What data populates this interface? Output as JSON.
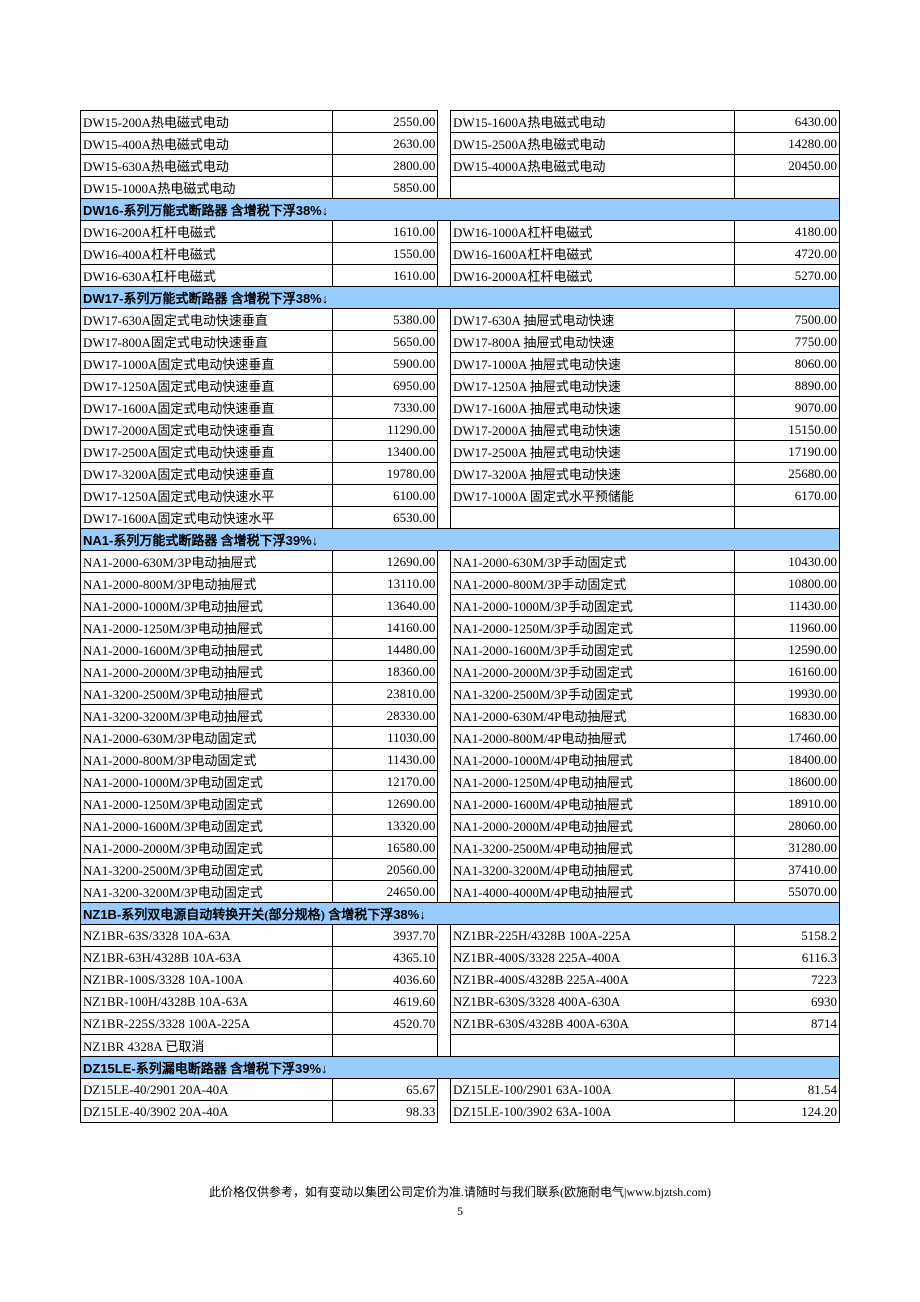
{
  "colors": {
    "header_bg": "#99ccff",
    "border": "#000000",
    "bg": "#ffffff"
  },
  "sections": [
    {
      "type": "data",
      "rows": [
        {
          "l_name": "DW15-200A热电磁式电动",
          "l_price": "2550.00",
          "r_name": "DW15-1600A热电磁式电动",
          "r_price": "6430.00"
        },
        {
          "l_name": "DW15-400A热电磁式电动",
          "l_price": "2630.00",
          "r_name": "DW15-2500A热电磁式电动",
          "r_price": "14280.00"
        },
        {
          "l_name": "DW15-630A热电磁式电动",
          "l_price": "2800.00",
          "r_name": "DW15-4000A热电磁式电动",
          "r_price": "20450.00"
        },
        {
          "l_name": "DW15-1000A热电磁式电动",
          "l_price": "5850.00",
          "r_name": "",
          "r_price": ""
        }
      ]
    },
    {
      "type": "header",
      "prefix": "DW16-",
      "title": "系列万能式断路器  含增税下浮",
      "pct": "38%↓"
    },
    {
      "type": "data",
      "rows": [
        {
          "l_name": "DW16-200A杠杆电磁式",
          "l_price": "1610.00",
          "r_name": "DW16-1000A杠杆电磁式",
          "r_price": "4180.00"
        },
        {
          "l_name": "DW16-400A杠杆电磁式",
          "l_price": "1550.00",
          "r_name": "DW16-1600A杠杆电磁式",
          "r_price": "4720.00"
        },
        {
          "l_name": "DW16-630A杠杆电磁式",
          "l_price": "1610.00",
          "r_name": "DW16-2000A杠杆电磁式",
          "r_price": "5270.00"
        }
      ]
    },
    {
      "type": "header",
      "prefix": "DW17-",
      "title": "系列万能式断路器  含增税下浮",
      "pct": "38%↓"
    },
    {
      "type": "data",
      "rows": [
        {
          "l_name": "DW17-630A固定式电动快速垂直",
          "l_price": "5380.00",
          "r_name": "DW17-630A 抽屉式电动快速",
          "r_price": "7500.00"
        },
        {
          "l_name": "DW17-800A固定式电动快速垂直",
          "l_price": "5650.00",
          "r_name": "DW17-800A 抽屉式电动快速",
          "r_price": "7750.00"
        },
        {
          "l_name": "DW17-1000A固定式电动快速垂直",
          "l_price": "5900.00",
          "r_name": "DW17-1000A 抽屉式电动快速",
          "r_price": "8060.00"
        },
        {
          "l_name": "DW17-1250A固定式电动快速垂直",
          "l_price": "6950.00",
          "r_name": "DW17-1250A 抽屉式电动快速",
          "r_price": "8890.00"
        },
        {
          "l_name": "DW17-1600A固定式电动快速垂直",
          "l_price": "7330.00",
          "r_name": "DW17-1600A 抽屉式电动快速",
          "r_price": "9070.00"
        },
        {
          "l_name": "DW17-2000A固定式电动快速垂直",
          "l_price": "11290.00",
          "r_name": "DW17-2000A 抽屉式电动快速",
          "r_price": "15150.00"
        },
        {
          "l_name": "DW17-2500A固定式电动快速垂直",
          "l_price": "13400.00",
          "r_name": "DW17-2500A 抽屉式电动快速",
          "r_price": "17190.00"
        },
        {
          "l_name": "DW17-3200A固定式电动快速垂直",
          "l_price": "19780.00",
          "r_name": "DW17-3200A 抽屉式电动快速",
          "r_price": "25680.00"
        },
        {
          "l_name": "DW17-1250A固定式电动快速水平",
          "l_price": "6100.00",
          "r_name": "DW17-1000A 固定式水平预储能",
          "r_price": "6170.00"
        },
        {
          "l_name": "DW17-1600A固定式电动快速水平",
          "l_price": "6530.00",
          "r_name": "",
          "r_price": ""
        }
      ]
    },
    {
      "type": "header",
      "prefix": "NA1-",
      "title": "系列万能式断路器  含增税下浮",
      "pct": "39%↓"
    },
    {
      "type": "data",
      "rows": [
        {
          "l_name": "NA1-2000-630M/3P电动抽屉式",
          "l_price": "12690.00",
          "r_name": "NA1-2000-630M/3P手动固定式",
          "r_price": "10430.00"
        },
        {
          "l_name": "NA1-2000-800M/3P电动抽屉式",
          "l_price": "13110.00",
          "r_name": "NA1-2000-800M/3P手动固定式",
          "r_price": "10800.00"
        },
        {
          "l_name": "NA1-2000-1000M/3P电动抽屉式",
          "l_price": "13640.00",
          "r_name": "NA1-2000-1000M/3P手动固定式",
          "r_price": "11430.00"
        },
        {
          "l_name": "NA1-2000-1250M/3P电动抽屉式",
          "l_price": "14160.00",
          "r_name": "NA1-2000-1250M/3P手动固定式",
          "r_price": "11960.00"
        },
        {
          "l_name": "NA1-2000-1600M/3P电动抽屉式",
          "l_price": "14480.00",
          "r_name": "NA1-2000-1600M/3P手动固定式",
          "r_price": "12590.00"
        },
        {
          "l_name": "NA1-2000-2000M/3P电动抽屉式",
          "l_price": "18360.00",
          "r_name": "NA1-2000-2000M/3P手动固定式",
          "r_price": "16160.00"
        },
        {
          "l_name": "NA1-3200-2500M/3P电动抽屉式",
          "l_price": "23810.00",
          "r_name": "NA1-3200-2500M/3P手动固定式",
          "r_price": "19930.00"
        },
        {
          "l_name": "NA1-3200-3200M/3P电动抽屉式",
          "l_price": "28330.00",
          "r_name": "NA1-2000-630M/4P电动抽屉式",
          "r_price": "16830.00"
        },
        {
          "l_name": "NA1-2000-630M/3P电动固定式",
          "l_price": "11030.00",
          "r_name": "NA1-2000-800M/4P电动抽屉式",
          "r_price": "17460.00"
        },
        {
          "l_name": "NA1-2000-800M/3P电动固定式",
          "l_price": "11430.00",
          "r_name": "NA1-2000-1000M/4P电动抽屉式",
          "r_price": "18400.00"
        },
        {
          "l_name": "NA1-2000-1000M/3P电动固定式",
          "l_price": "12170.00",
          "r_name": "NA1-2000-1250M/4P电动抽屉式",
          "r_price": "18600.00"
        },
        {
          "l_name": "NA1-2000-1250M/3P电动固定式",
          "l_price": "12690.00",
          "r_name": "NA1-2000-1600M/4P电动抽屉式",
          "r_price": "18910.00"
        },
        {
          "l_name": "NA1-2000-1600M/3P电动固定式",
          "l_price": "13320.00",
          "r_name": "NA1-2000-2000M/4P电动抽屉式",
          "r_price": "28060.00"
        },
        {
          "l_name": "NA1-2000-2000M/3P电动固定式",
          "l_price": "16580.00",
          "r_name": "NA1-3200-2500M/4P电动抽屉式",
          "r_price": "31280.00"
        },
        {
          "l_name": "NA1-3200-2500M/3P电动固定式",
          "l_price": "20560.00",
          "r_name": "NA1-3200-3200M/4P电动抽屉式",
          "r_price": "37410.00"
        },
        {
          "l_name": "NA1-3200-3200M/3P电动固定式",
          "l_price": "24650.00",
          "r_name": "NA1-4000-4000M/4P电动抽屉式",
          "r_price": "55070.00"
        }
      ]
    },
    {
      "type": "header",
      "prefix": "NZ1B-",
      "title": "系列双电源自动转换开关(部分规格)   含增税下浮",
      "pct": "38%↓"
    },
    {
      "type": "data",
      "rows": [
        {
          "l_name": "NZ1BR-63S/3328   10A-63A",
          "l_price": "3937.70",
          "r_name": "NZ1BR-225H/4328B 100A-225A",
          "r_price": "5158.2"
        },
        {
          "l_name": "NZ1BR-63H/4328B  10A-63A",
          "l_price": "4365.10",
          "r_name": "NZ1BR-400S/3328  225A-400A",
          "r_price": "6116.3"
        },
        {
          "l_name": "NZ1BR-100S/3328  10A-100A",
          "l_price": "4036.60",
          "r_name": "NZ1BR-400S/4328B 225A-400A",
          "r_price": "7223"
        },
        {
          "l_name": "NZ1BR-100H/4328B 10A-63A",
          "l_price": "4619.60",
          "r_name": "NZ1BR-630S/3328  400A-630A",
          "r_price": "6930"
        },
        {
          "l_name": "NZ1BR-225S/3328  100A-225A",
          "l_price": "4520.70",
          "r_name": "NZ1BR-630S/4328B 400A-630A",
          "r_price": "8714"
        },
        {
          "l_name": "NZ1BR  4328A 已取消",
          "l_price": "",
          "r_name": "",
          "r_price": ""
        }
      ]
    },
    {
      "type": "header",
      "prefix": "DZ15LE-",
      "title": "系列漏电断路器  含增税下浮",
      "pct": "39%↓"
    },
    {
      "type": "data",
      "rows": [
        {
          "l_name": "DZ15LE-40/2901  20A-40A",
          "l_price": "65.67",
          "r_name": "DZ15LE-100/2901  63A-100A",
          "r_price": "81.54"
        },
        {
          "l_name": "DZ15LE-40/3902  20A-40A",
          "l_price": "98.33",
          "r_name": "DZ15LE-100/3902  63A-100A",
          "r_price": "124.20"
        }
      ]
    }
  ],
  "footer": "此价格仅供参考，如有变动以集团公司定价为准.请随时与我们联系(欧施耐电气|www.bjztsh.com)",
  "page_number": "5"
}
